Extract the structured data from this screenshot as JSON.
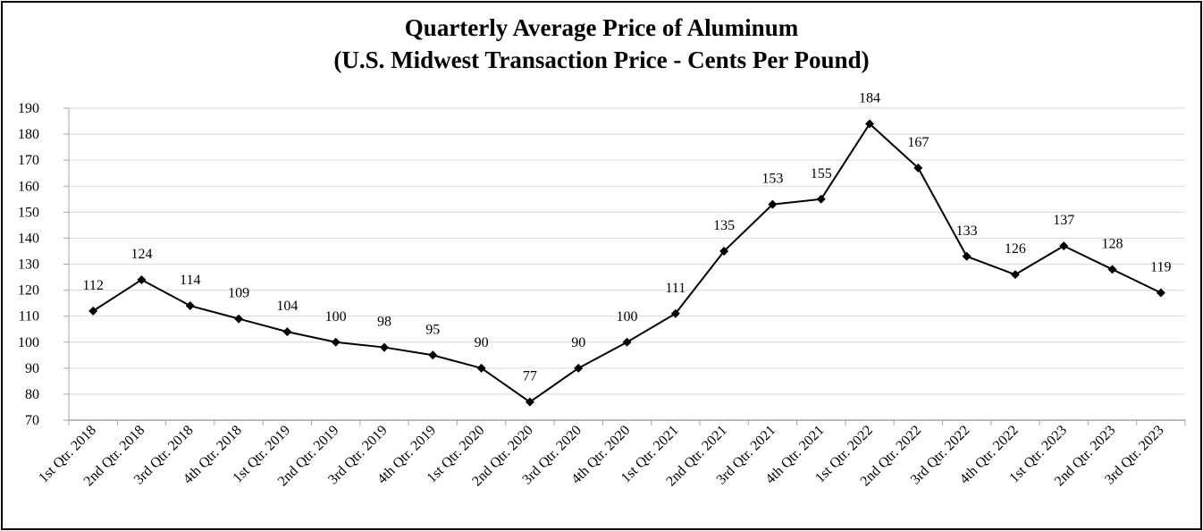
{
  "chart_data": {
    "type": "line",
    "title_lines": [
      "Quarterly Average Price of Aluminum",
      "(U.S. Midwest Transaction Price - Cents Per Pound)"
    ],
    "xlabel": "",
    "ylabel": "",
    "ylim": [
      70,
      190
    ],
    "yticks": [
      70,
      80,
      90,
      100,
      110,
      120,
      130,
      140,
      150,
      160,
      170,
      180,
      190
    ],
    "grid": true,
    "legend": "none",
    "marker": "diamond",
    "categories": [
      "1st Qtr. 2018",
      "2nd Qtr. 2018",
      "3rd Qtr. 2018",
      "4th Qtr. 2018",
      "1st Qtr. 2019",
      "2nd Qtr. 2019",
      "3rd Qtr. 2019",
      "4th Qtr. 2019",
      "1st Qtr. 2020",
      "2nd Qtr. 2020",
      "3rd Qtr. 2020",
      "4th Qtr. 2020",
      "1st Qtr. 2021",
      "2nd Qtr. 2021",
      "3rd Qtr. 2021",
      "4th Qtr. 2021",
      "1st Qtr. 2022",
      "2nd Qtr. 2022",
      "3rd Qtr. 2022",
      "4th Qtr. 2022",
      "1st Qtr. 2023",
      "2nd Qtr. 2023",
      "3rd Qtr. 2023"
    ],
    "values": [
      112,
      124,
      114,
      109,
      104,
      100,
      98,
      95,
      90,
      77,
      90,
      100,
      111,
      135,
      153,
      155,
      184,
      167,
      133,
      126,
      137,
      128,
      119
    ],
    "labels": [
      "112",
      "124",
      "114",
      "109",
      "104",
      "100",
      "98",
      "95",
      "90",
      "77",
      "90",
      "100",
      "111",
      "135",
      "153",
      "155",
      "184",
      "167",
      "133",
      "126",
      "137",
      "128",
      "119"
    ],
    "colors": {
      "line": "#000000",
      "grid": "#d9d9d9",
      "axis": "#a6a6a6"
    }
  }
}
